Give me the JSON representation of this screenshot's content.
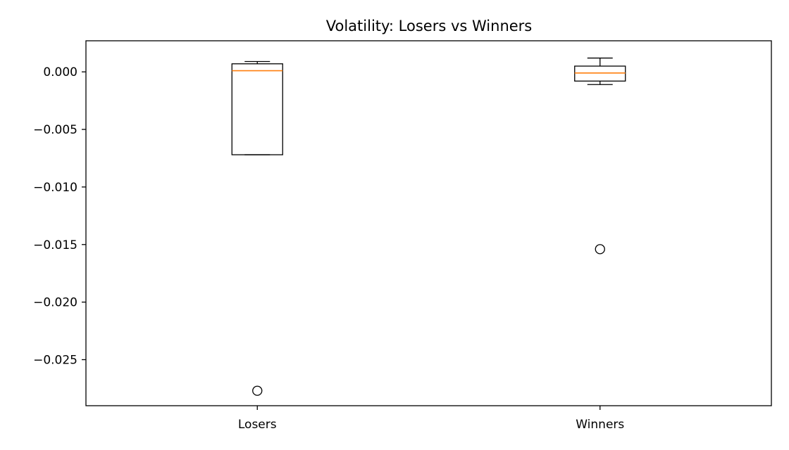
{
  "chart_data": {
    "type": "box",
    "title": "Volatility: Losers vs Winners",
    "xlabel": "",
    "ylabel": "",
    "categories": [
      "Losers",
      "Winners"
    ],
    "ylim": [
      -0.029,
      0.0027
    ],
    "yticks": [
      0.0,
      -0.005,
      -0.01,
      -0.015,
      -0.02,
      -0.025
    ],
    "ytick_labels": [
      "0.000",
      "−0.005",
      "−0.010",
      "−0.015",
      "−0.020",
      "−0.025"
    ],
    "grid": false,
    "boxes": [
      {
        "category": "Losers",
        "whisker_low": -0.0072,
        "q1": -0.0072,
        "median": 0.0001,
        "q3": 0.0007,
        "whisker_high": 0.0009,
        "outliers": [
          -0.0277
        ]
      },
      {
        "category": "Winners",
        "whisker_low": -0.0011,
        "q1": -0.0008,
        "median": -0.0001,
        "q3": 0.0005,
        "whisker_high": 0.0012,
        "outliers": [
          -0.0154
        ]
      }
    ],
    "colors": {
      "box": "#000000",
      "median": "#ff7f0e",
      "outlier": "#000000",
      "axes": "#000000"
    }
  }
}
